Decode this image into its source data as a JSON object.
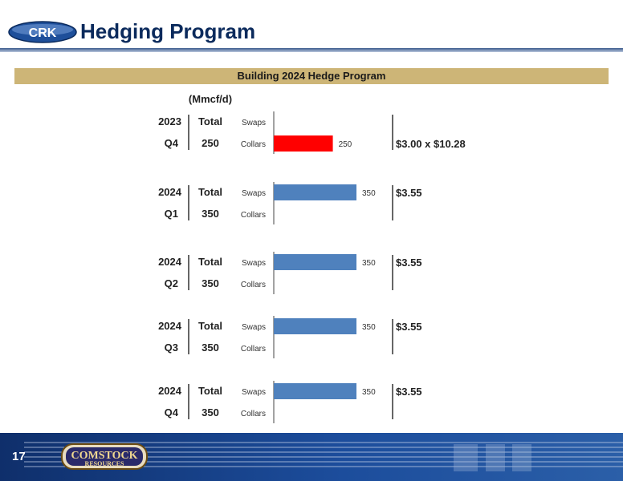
{
  "header": {
    "title": "Hedging Program",
    "logo_text": "CRK"
  },
  "banner": {
    "title": "Building 2024 Hedge Program"
  },
  "footer": {
    "page_number": "17",
    "logo_text_top": "COMSTOCK",
    "logo_text_bottom": "RESOURCES"
  },
  "colors": {
    "collars": "#ff0000",
    "swaps": "#4f81bd",
    "banner": "#cdb577",
    "title": "#0b2a5c"
  },
  "chart_data": {
    "type": "bar",
    "orientation": "horizontal",
    "unit_label": "(Mmcf/d)",
    "total_header": "Total",
    "categories": [
      "Swaps",
      "Collars"
    ],
    "groups": [
      {
        "year": "2023",
        "quarter": "Q4",
        "total": "250",
        "swaps": null,
        "collars": 250,
        "price": "$3.00 x $10.28"
      },
      {
        "year": "2024",
        "quarter": "Q1",
        "total": "350",
        "swaps": 350,
        "collars": null,
        "price": "$3.55"
      },
      {
        "year": "2024",
        "quarter": "Q2",
        "total": "350",
        "swaps": 350,
        "collars": null,
        "price": "$3.55"
      },
      {
        "year": "2024",
        "quarter": "Q3",
        "total": "350",
        "swaps": 350,
        "collars": null,
        "price": "$3.55"
      },
      {
        "year": "2024",
        "quarter": "Q4",
        "total": "350",
        "swaps": 350,
        "collars": null,
        "price": "$3.55"
      }
    ],
    "xlim": [
      0,
      350
    ]
  }
}
